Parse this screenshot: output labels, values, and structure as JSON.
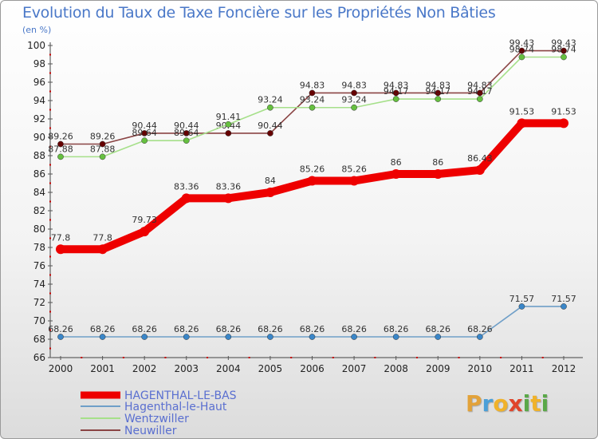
{
  "title": "Evolution du Taux de Taxe Foncière sur les Propriétés Non Bâties",
  "unit_label": "(en %)",
  "logo": {
    "text": "Proxiti",
    "letters": [
      {
        "ch": "P",
        "color": "#e2a23a"
      },
      {
        "ch": "r",
        "color": "#4a9fd8"
      },
      {
        "ch": "o",
        "color": "#f0b22a"
      },
      {
        "ch": "x",
        "color": "#e0442a"
      },
      {
        "ch": "i",
        "color": "#5aa848"
      },
      {
        "ch": "t",
        "color": "#f0b22a"
      },
      {
        "ch": "i",
        "color": "#5aa848"
      }
    ]
  },
  "chart_data": {
    "type": "line",
    "categories": [
      "2000",
      "2001",
      "2002",
      "2003",
      "2004",
      "2005",
      "2006",
      "2007",
      "2008",
      "2009",
      "2010",
      "2011",
      "2012"
    ],
    "ylim": [
      66,
      100
    ],
    "yticks": [
      66,
      68,
      70,
      72,
      74,
      76,
      78,
      80,
      82,
      84,
      86,
      88,
      90,
      92,
      94,
      96,
      98,
      100
    ],
    "grid": false,
    "legend_position": "bottom-left",
    "series": [
      {
        "name": "HAGENTHAL-LE-BAS",
        "color": "#ee0000",
        "width": "thick",
        "values": [
          77.8,
          77.8,
          79.73,
          83.36,
          83.36,
          84,
          85.26,
          85.26,
          86,
          86,
          86.43,
          91.53,
          91.53
        ],
        "labels": [
          "77.8",
          "77.8",
          "79.73",
          "83.36",
          "83.36",
          "84",
          "85.26",
          "85.26",
          "86",
          "86",
          "86.43",
          "91.53",
          "91.53"
        ]
      },
      {
        "name": "Hagenthal-le-Haut",
        "color": "#6f9fc8",
        "marker": "#3a86c8",
        "values": [
          68.26,
          68.26,
          68.26,
          68.26,
          68.26,
          68.26,
          68.26,
          68.26,
          68.26,
          68.26,
          68.26,
          71.57,
          71.57
        ],
        "labels": [
          "68.26",
          "68.26",
          "68.26",
          "68.26",
          "68.26",
          "68.26",
          "68.26",
          "68.26",
          "68.26",
          "68.26",
          "68.26",
          "71.57",
          "71.57"
        ]
      },
      {
        "name": "Wentzwiller",
        "color": "#a6e08a",
        "marker": "#66c040",
        "values": [
          87.88,
          87.88,
          89.64,
          89.64,
          91.41,
          93.24,
          93.24,
          93.24,
          94.17,
          94.17,
          94.17,
          98.74,
          98.74
        ],
        "labels": [
          "87.88",
          "87.88",
          "89.64",
          "89.64",
          "91.41",
          "93.24",
          "93.24",
          "93.24",
          "94.17",
          "94.17",
          "94.17",
          "98.74",
          "98.74"
        ]
      },
      {
        "name": "Neuwiller",
        "color": "#8a4444",
        "marker": "#660000",
        "values": [
          89.26,
          89.26,
          90.44,
          90.44,
          90.44,
          90.44,
          94.83,
          94.83,
          94.83,
          94.83,
          94.83,
          99.43,
          99.43
        ],
        "labels": [
          "89.26",
          "89.26",
          "90.44",
          "90.44",
          "90.44",
          "90.44",
          "94.83",
          "94.83",
          "94.83",
          "94.83",
          "94.83",
          "99.43",
          "99.43"
        ]
      }
    ]
  }
}
